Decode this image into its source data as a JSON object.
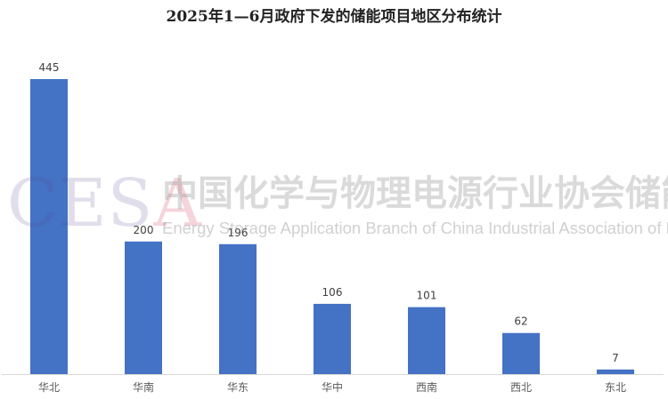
{
  "chart_data": {
    "type": "bar",
    "title": "2025年1—6月政府下发的储能项目地区分布统计",
    "categories": [
      "华北",
      "华南",
      "华东",
      "华中",
      "西南",
      "西北",
      "东北"
    ],
    "values": [
      445,
      200,
      196,
      106,
      101,
      62,
      7
    ],
    "ylim": [
      0,
      445
    ],
    "grid": false,
    "legend": "none",
    "bar_color": "#4472C4"
  },
  "watermark": {
    "logo": "CESA",
    "cn": "中国化学与物理电源行业协会储能应用分会",
    "en": "Energy Storage Application Branch of China Industrial Association of Power Sources"
  }
}
